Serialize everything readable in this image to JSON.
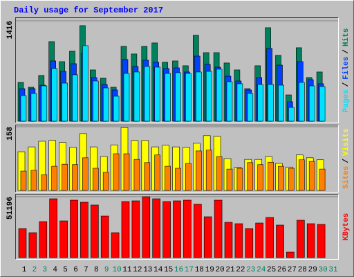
{
  "title": "Daily usage for September 2017",
  "chart_data": [
    {
      "type": "bar",
      "ylim": [
        0,
        1416
      ],
      "yticks": [
        1416
      ],
      "legend_separator": "/",
      "series": [
        {
          "name": "Hits",
          "color": "#00805c",
          "values": [
            547,
            479,
            645,
            1123,
            840,
            987,
            1348,
            723,
            606,
            479,
            1055,
            948,
            1055,
            1104,
            831,
            850,
            782,
            1211,
            967,
            967,
            821,
            723,
            459,
            782,
            1319,
            928,
            371,
            1036,
            616,
            694,
            0
          ]
        },
        {
          "name": "Files",
          "color": "#0040ff",
          "values": [
            459,
            459,
            508,
            850,
            703,
            811,
            957,
            615,
            518,
            440,
            870,
            772,
            860,
            831,
            743,
            752,
            694,
            918,
            801,
            762,
            635,
            567,
            440,
            615,
            1026,
            791,
            274,
            840,
            586,
            528,
            0
          ]
        },
        {
          "name": "Pages",
          "color": "#00e0ff",
          "values": [
            361,
            391,
            498,
            743,
            537,
            655,
            1065,
            567,
            469,
            352,
            674,
            694,
            772,
            762,
            674,
            684,
            674,
            694,
            703,
            733,
            557,
            528,
            391,
            518,
            518,
            508,
            195,
            547,
            498,
            489,
            0
          ]
        }
      ]
    },
    {
      "type": "bar",
      "ylim": [
        0,
        158
      ],
      "yticks": [
        158
      ],
      "legend_separator": "/",
      "series": [
        {
          "name": "Visits",
          "color": "#ffff00",
          "values": [
            96,
            108,
            122,
            124,
            119,
            107,
            141,
            108,
            84,
            113,
            156,
            124,
            124,
            108,
            112,
            108,
            107,
            117,
            136,
            134,
            79,
            57,
            77,
            77,
            84,
            67,
            58,
            88,
            81,
            76,
            0
          ]
        },
        {
          "name": "Sites",
          "color": "#ff8000",
          "values": [
            48,
            50,
            39,
            60,
            65,
            64,
            81,
            55,
            45,
            91,
            91,
            77,
            69,
            88,
            60,
            55,
            67,
            98,
            100,
            84,
            53,
            55,
            69,
            64,
            70,
            60,
            55,
            76,
            72,
            53,
            0
          ]
        }
      ]
    },
    {
      "type": "bar",
      "ylim": [
        0,
        51196
      ],
      "yticks": [
        51196
      ],
      "categories": [
        "1",
        "2",
        "3",
        "4",
        "5",
        "6",
        "7",
        "8",
        "9",
        "10",
        "11",
        "12",
        "13",
        "14",
        "15",
        "16",
        "17",
        "18",
        "19",
        "20",
        "21",
        "22",
        "23",
        "24",
        "25",
        "26",
        "27",
        "28",
        "29",
        "30",
        "31"
      ],
      "category_colors": [
        "#000000",
        "#00805c",
        "#00805c",
        "#000000",
        "#000000",
        "#000000",
        "#000000",
        "#000000",
        "#00805c",
        "#00805c",
        "#000000",
        "#000000",
        "#000000",
        "#000000",
        "#000000",
        "#00805c",
        "#00805c",
        "#000000",
        "#000000",
        "#000000",
        "#000000",
        "#000000",
        "#00805c",
        "#00805c",
        "#000000",
        "#000000",
        "#000000",
        "#000000",
        "#000000",
        "#00805c",
        "#00805c"
      ],
      "series": [
        {
          "name": "KBytes",
          "color": "#ff0000",
          "values": [
            24436,
            20945,
            30254,
            49455,
            30836,
            48291,
            46545,
            44218,
            34909,
            20945,
            47127,
            47709,
            51196,
            49455,
            47127,
            47709,
            48291,
            44800,
            34327,
            48291,
            29673,
            28509,
            24436,
            29091,
            33745,
            27345,
            4655,
            31418,
            28509,
            27927,
            0
          ]
        }
      ]
    }
  ]
}
